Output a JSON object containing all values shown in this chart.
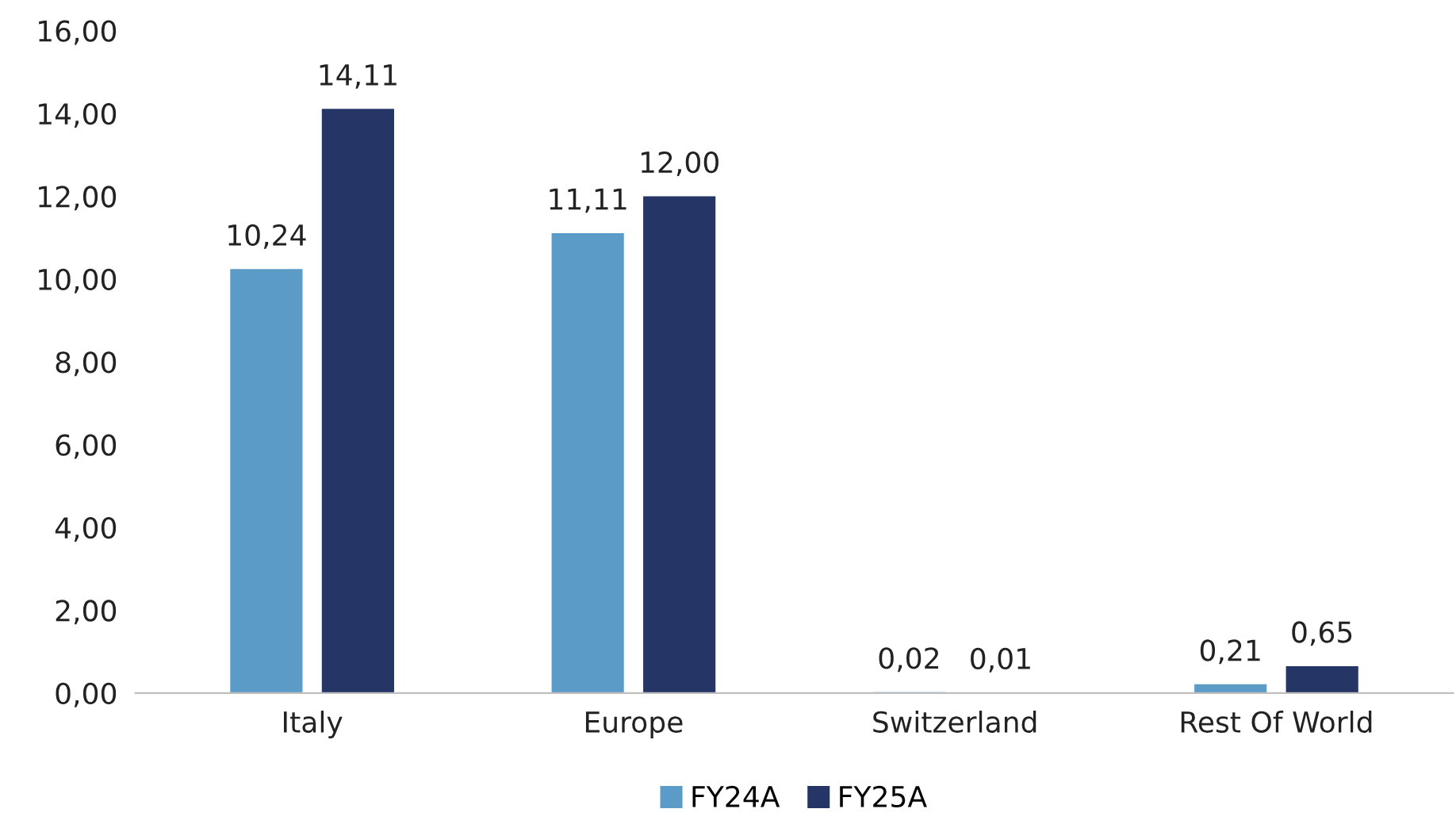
{
  "chart_data": {
    "type": "bar",
    "categories": [
      "Italy",
      "Europe",
      "Switzerland",
      "Rest Of World"
    ],
    "series": [
      {
        "name": "FY24A",
        "color": "#5b9bc8",
        "values": [
          10.24,
          11.11,
          0.02,
          0.21
        ],
        "value_labels": [
          "10,24",
          "11,11",
          "0,02",
          "0,21"
        ]
      },
      {
        "name": "FY25A",
        "color": "#253566",
        "values": [
          14.11,
          12.0,
          0.01,
          0.65
        ],
        "value_labels": [
          "14,11",
          "12,00",
          "0,01",
          "0,65"
        ]
      }
    ],
    "ylim": [
      0,
      16
    ],
    "yticks": [
      {
        "value": 0,
        "label": "0,00"
      },
      {
        "value": 2,
        "label": "2,00"
      },
      {
        "value": 4,
        "label": "4,00"
      },
      {
        "value": 6,
        "label": "6,00"
      },
      {
        "value": 8,
        "label": "8,00"
      },
      {
        "value": 10,
        "label": "10,00"
      },
      {
        "value": 12,
        "label": "12,00"
      },
      {
        "value": 14,
        "label": "14,00"
      },
      {
        "value": 16,
        "label": "16,00"
      }
    ],
    "grid": false,
    "legend": "bottom"
  }
}
